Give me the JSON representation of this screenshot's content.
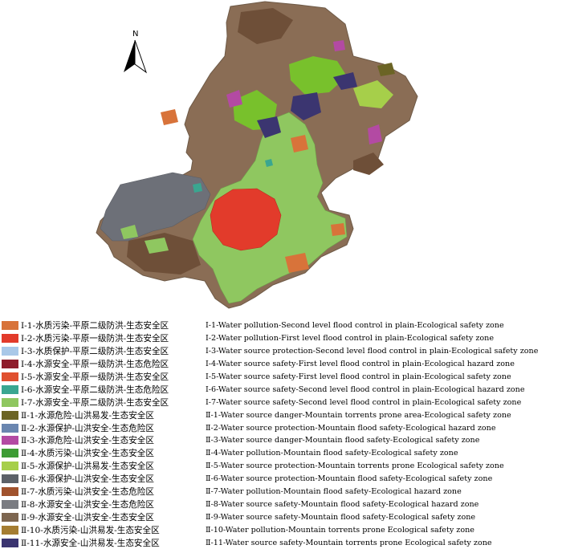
{
  "map": {
    "north_label": "N",
    "outline_color": "#8a7057",
    "colors": {
      "brown_mid": "#8a6d55",
      "brown_dark": "#6e4f38",
      "gray": "#6d7078",
      "light_green": "#8fc760",
      "red": "#e23b2b",
      "orange": "#d8733a",
      "bright_green": "#78c12c",
      "navy": "#3b3570",
      "magenta": "#b34aa3",
      "teal": "#3aa690",
      "olive": "#6b6425"
    }
  },
  "legend": [
    {
      "color": "#d8733a",
      "cn": "Ⅰ-1-水质污染-平原二级防洪-生态安全区",
      "en": "Ⅰ-1-Water pollution-Second level flood control in plain-Ecological safety zone"
    },
    {
      "color": "#e23b2b",
      "cn": "Ⅰ-2-水质污染-平原一级防洪-生态安全区",
      "en": "Ⅰ-2-Water pollution-First level flood control in plain-Ecological safety zone"
    },
    {
      "color": "#a9c8e8",
      "cn": "Ⅰ-3-水质保护-平原二级防洪-生态安全区",
      "en": "Ⅰ-3-Water source protection-Second level flood control in plain-Ecological safety zone"
    },
    {
      "color": "#8e1d2c",
      "cn": "Ⅰ-4-水源安全-平原一级防洪-生态危险区",
      "en": "Ⅰ-4-Water source safety-First level flood control in plain-Ecological hazard zone"
    },
    {
      "color": "#e0502f",
      "cn": "Ⅰ-5-水源安全-平原一级防洪-生态安全区",
      "en": "Ⅰ-5-Water source safety-First level flood control in plain-Ecological safety zone"
    },
    {
      "color": "#3aa690",
      "cn": "Ⅰ-6-水源安全-平原二级防洪-生态危险区",
      "en": "Ⅰ-6-Water source safety-Second level flood control  in plain-Ecological hazard zone"
    },
    {
      "color": "#8fc760",
      "cn": "Ⅰ-7-水源安全-平原二级防洪-生态安全区",
      "en": "Ⅰ-7-Water source safety-Second level flood control in plain-Ecological safety zone"
    },
    {
      "color": "#6b6425",
      "cn": "Ⅱ-1-水源危险-山洪易发-生态安全区",
      "en": "Ⅱ-1-Water source danger-Mountain torrents prone area-Ecological safety zone"
    },
    {
      "color": "#6a86b0",
      "cn": "Ⅱ-2-水源保护-山洪安全-生态危险区",
      "en": "Ⅱ-2-Water source protection-Mountain flood safety-Ecological hazard zone"
    },
    {
      "color": "#b34aa3",
      "cn": "Ⅱ-3-水源危险-山洪安全-生态安全区",
      "en": "Ⅱ-3-Water source danger-Mountain flood safety-Ecological safety zone"
    },
    {
      "color": "#3e9c35",
      "cn": "Ⅱ-4-水质污染-山洪安全-生态安全区",
      "en": "Ⅱ-4-Water pollution-Mountain flood safety-Ecological safety zone"
    },
    {
      "color": "#a6cf4a",
      "cn": "Ⅱ-5-水源保护-山洪易发-生态安全区",
      "en": "Ⅱ-5-Water source protection-Mountain torrents prone Ecological safety zone"
    },
    {
      "color": "#5c6168",
      "cn": "Ⅱ-6-水源保护-山洪安全-生态安全区",
      "en": "Ⅱ-6-Water source protection-Mountain flood safety-Ecological safety zone"
    },
    {
      "color": "#a0522d",
      "cn": "Ⅱ-7-水质污染-山洪安全-生态危险区",
      "en": "Ⅱ-7-Water pollution-Mountain flood safety-Ecological hazard zone"
    },
    {
      "color": "#7a7c82",
      "cn": "Ⅱ-8-水源安全-山洪安全-生态危险区",
      "en": "Ⅱ-8-Water source safety-Mountain flood safety-Ecological hazard zone"
    },
    {
      "color": "#7d6650",
      "cn": "Ⅱ-9-水源安全-山洪安全-生态安全区",
      "en": "Ⅱ-9-Water source safety-Mountain flood safety-Ecological safety zone"
    },
    {
      "color": "#a57d32",
      "cn": "Ⅱ-10-水质污染-山洪易发-生态安全区",
      "en": "Ⅱ-10-Water pollution-Mountain torrents prone Ecological safety zone"
    },
    {
      "color": "#3b3570",
      "cn": "Ⅱ-11-水源安全-山洪易发-生态安全区",
      "en": "Ⅱ-11-Water source safety-Mountain torrents prone Ecological safety zone"
    }
  ]
}
